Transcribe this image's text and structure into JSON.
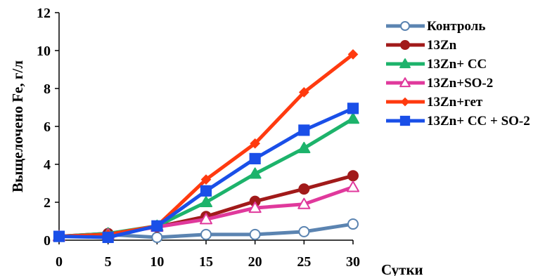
{
  "chart_data": {
    "type": "line",
    "x": [
      0,
      5,
      10,
      15,
      20,
      25,
      30
    ],
    "x_ticks": [
      "0",
      "5",
      "10",
      "15",
      "20",
      "25",
      "30"
    ],
    "y_ticks": [
      "0",
      "2",
      "4",
      "6",
      "8",
      "10",
      "12"
    ],
    "xlim": [
      0,
      30
    ],
    "ylim": [
      0,
      12
    ],
    "xlabel": "Сутки",
    "ylabel": "Выщелочено  Fe,   г/л",
    "grid": false,
    "legend_position": "right",
    "series": [
      {
        "name": "Контроль",
        "color": "#5b84b1",
        "marker": "circle-open",
        "values": [
          0.2,
          0.3,
          0.15,
          0.3,
          0.3,
          0.45,
          0.85
        ]
      },
      {
        "name": "13Zn",
        "color": "#a11a1a",
        "marker": "circle",
        "values": [
          0.2,
          0.35,
          0.7,
          1.25,
          2.05,
          2.7,
          3.4
        ]
      },
      {
        "name": "13Zn+ CC",
        "color": "#1db36b",
        "marker": "triangle",
        "values": [
          0.2,
          0.35,
          0.75,
          2.0,
          3.5,
          4.85,
          6.4
        ]
      },
      {
        "name": "13Zn+SO-2",
        "color": "#e0399c",
        "marker": "triangle-open",
        "values": [
          0.2,
          0.3,
          0.7,
          1.1,
          1.7,
          1.9,
          2.8
        ]
      },
      {
        "name": "13Zn+гет",
        "color": "#ff3a0f",
        "marker": "diamond",
        "values": [
          0.2,
          0.3,
          0.75,
          3.2,
          5.1,
          7.8,
          9.8
        ]
      },
      {
        "name": "13Zn+ CC + SO-2",
        "color": "#1a4fe8",
        "marker": "square",
        "values": [
          0.2,
          0.15,
          0.75,
          2.6,
          4.3,
          5.8,
          6.95
        ]
      }
    ]
  }
}
